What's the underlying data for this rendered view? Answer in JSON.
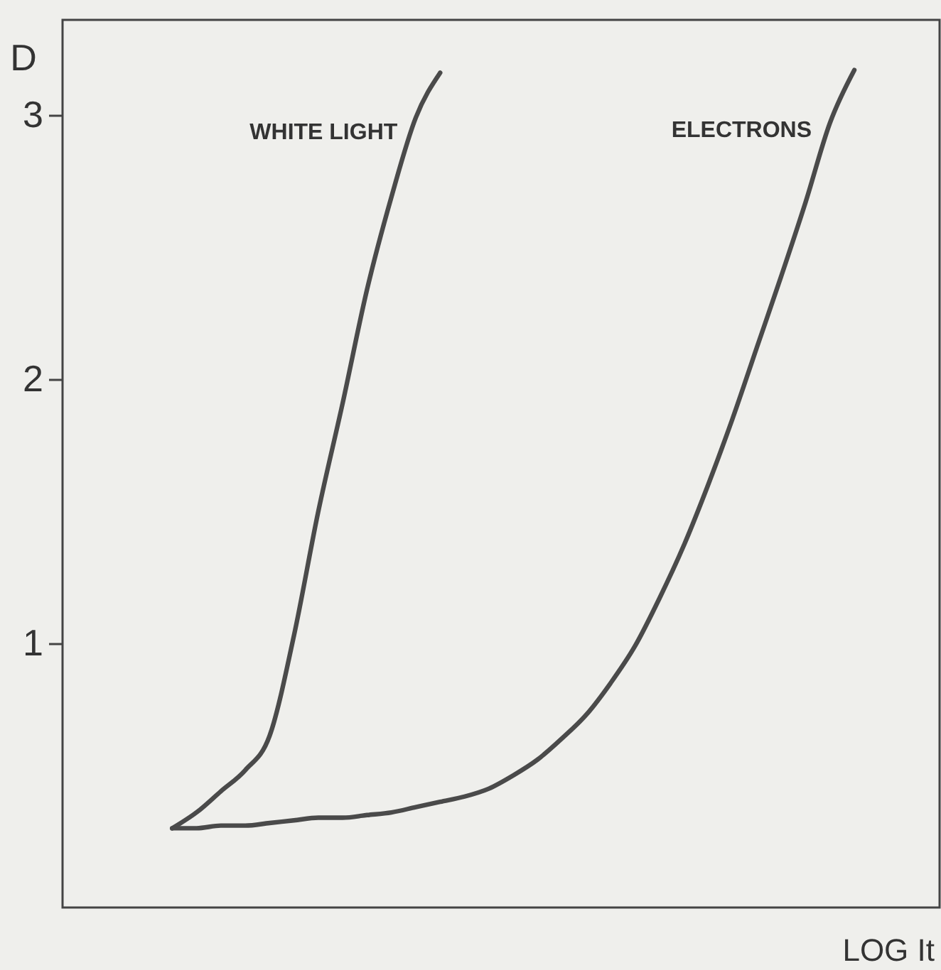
{
  "chart_data": {
    "type": "line",
    "xlabel": "LOG It",
    "ylabel": "D",
    "categories": [
      null,
      null,
      null,
      null,
      null,
      null,
      null,
      null,
      null,
      null,
      null,
      null,
      null,
      null,
      null,
      null,
      null,
      null,
      null,
      null,
      null,
      null,
      null,
      null,
      null,
      null,
      null,
      null,
      null,
      null,
      null,
      null,
      null,
      null,
      null,
      null
    ],
    "ylim": [
      0,
      3.36
    ],
    "yticks": [
      1,
      2,
      3
    ],
    "tick_labels": "y",
    "grid": false,
    "legend": false,
    "line_style": "solid",
    "marker": "none",
    "series": [
      {
        "name": "WHITE LIGHT",
        "color": "#4a4a4a",
        "values": [
          null,
          null,
          null,
          null,
          0.3,
          0.36,
          0.44,
          0.52,
          0.65,
          1.03,
          1.5,
          1.91,
          2.34,
          2.69,
          2.99,
          3.16,
          null,
          null,
          null,
          null,
          null,
          null,
          null,
          null,
          null,
          null,
          null,
          null,
          null,
          null,
          null,
          null,
          null,
          null,
          null,
          null
        ]
      },
      {
        "name": "ELECTRONS",
        "color": "#4a4a4a",
        "values": [
          null,
          null,
          null,
          null,
          0.3,
          0.3,
          0.31,
          0.31,
          0.32,
          0.33,
          0.34,
          0.34,
          0.35,
          0.36,
          0.38,
          0.4,
          0.42,
          0.45,
          0.5,
          0.56,
          0.64,
          0.73,
          0.85,
          0.99,
          1.17,
          1.37,
          1.6,
          1.85,
          2.12,
          2.39,
          2.67,
          2.97,
          3.17,
          null,
          null,
          null
        ]
      }
    ]
  }
}
